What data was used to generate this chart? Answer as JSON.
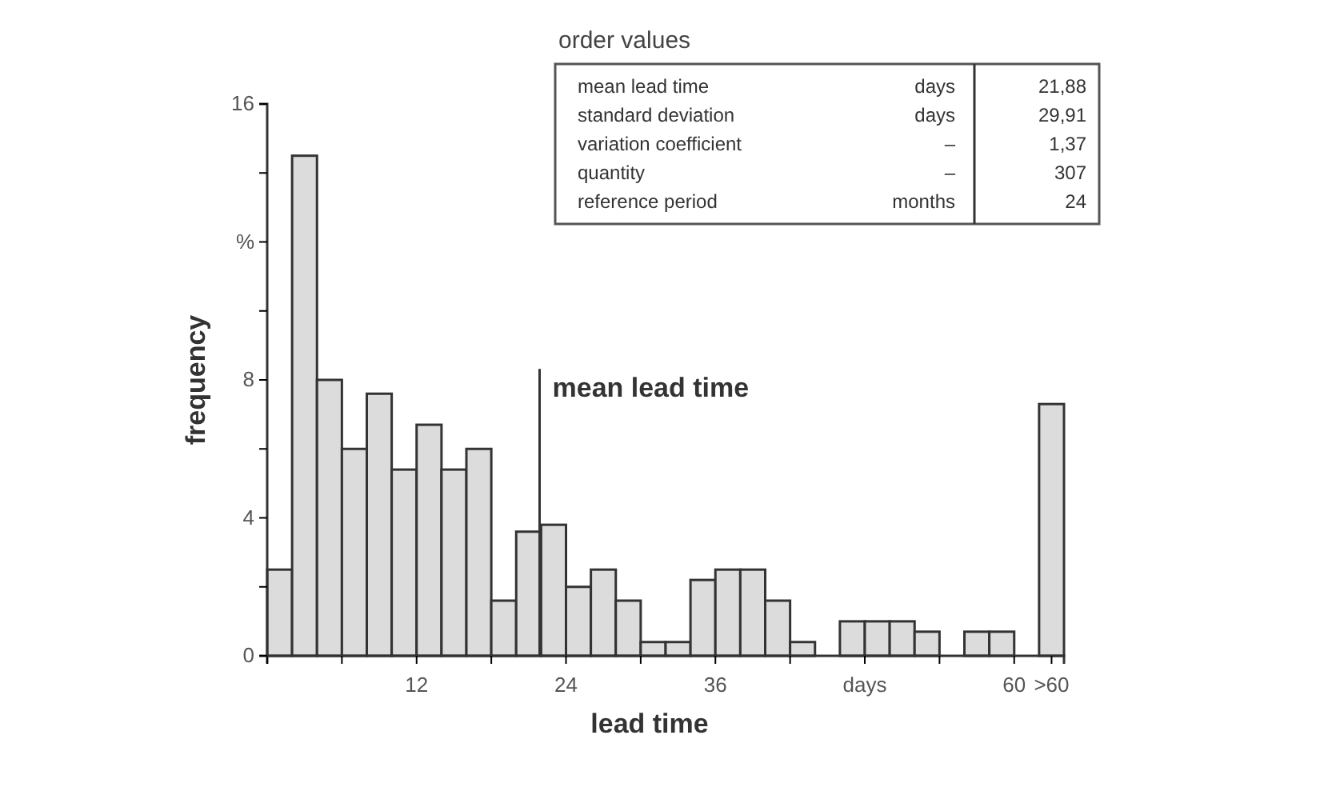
{
  "chart_data": {
    "type": "histogram",
    "xlabel": "lead time",
    "ylabel": "frequency",
    "bins": [
      0,
      2,
      4,
      6,
      8,
      10,
      12,
      14,
      16,
      18,
      20,
      22,
      24,
      26,
      28,
      30,
      32,
      34,
      36,
      38,
      40,
      42,
      44,
      46,
      48,
      50,
      52,
      54,
      56,
      58,
      60,
      62,
      64
    ],
    "values": [
      2.5,
      14.5,
      8,
      6,
      7.6,
      5.4,
      6.7,
      5.4,
      6,
      1.6,
      3.6,
      3.8,
      2,
      2.5,
      1.6,
      0.4,
      0.4,
      2.2,
      2.5,
      2.5,
      1.6,
      0.4,
      0,
      1,
      1,
      1,
      0.7,
      0,
      0.7,
      0.7,
      0,
      7.3
    ],
    "color": "#dcdcdc",
    "xlim": [
      0,
      64
    ],
    "xticks": [
      {
        "value": 0,
        "label": null
      },
      {
        "value": 6,
        "label": null
      },
      12,
      {
        "value": 18,
        "label": null
      },
      24,
      {
        "value": 30,
        "label": null
      },
      36,
      {
        "value": 42,
        "label": null
      },
      {
        "value": 48,
        "label": "days"
      },
      {
        "value": 54,
        "label": null
      },
      60,
      {
        "value": 63,
        "label": ">60"
      }
    ],
    "ylim": [
      0,
      16
    ],
    "yticks": [
      0,
      {
        "value": 2,
        "label": null
      },
      4,
      {
        "value": 6,
        "label": null
      },
      8,
      {
        "value": 10,
        "label": null
      },
      {
        "value": 12,
        "label": "%"
      },
      {
        "value": 14,
        "label": null
      },
      16
    ],
    "ref_lines": [
      {
        "axis": "x",
        "value": 21.88,
        "label": "mean lead time"
      }
    ],
    "annotations": [
      "order values",
      "mean lead time",
      "days",
      "21,88",
      "standard deviation",
      "days",
      "29,91",
      "variation coefficient",
      "–",
      "1,37",
      "quantity",
      "–",
      "307",
      "reference period",
      "months",
      "24"
    ],
    "grid": false
  }
}
